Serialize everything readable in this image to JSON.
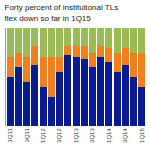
{
  "chart_data": {
    "type": "bar",
    "title": "Forty percent of institutional TLs flex down so far in 1Q15",
    "categories": [
      "1Q11",
      null,
      "3Q11",
      null,
      "1Q12",
      null,
      "3Q12",
      null,
      "1Q13",
      null,
      "3Q13",
      null,
      "1Q14",
      null,
      "3Q14",
      null,
      "1Q15"
    ],
    "series": [
      {
        "color": "#0a1a8f",
        "values": [
          50,
          60,
          45,
          62,
          40,
          30,
          55,
          72,
          70,
          68,
          60,
          70,
          65,
          55,
          62,
          50,
          40
        ]
      },
      {
        "color": "#f07f1e",
        "values": [
          20,
          15,
          25,
          20,
          30,
          40,
          15,
          10,
          12,
          14,
          15,
          12,
          15,
          20,
          18,
          25,
          35
        ]
      },
      {
        "color": "#9bbb59",
        "values": [
          30,
          25,
          30,
          18,
          30,
          30,
          30,
          18,
          18,
          18,
          25,
          18,
          20,
          25,
          20,
          25,
          25
        ]
      }
    ],
    "stacked": true,
    "ylim": [
      0,
      100
    ],
    "tick_labels": "x",
    "grid": false
  }
}
